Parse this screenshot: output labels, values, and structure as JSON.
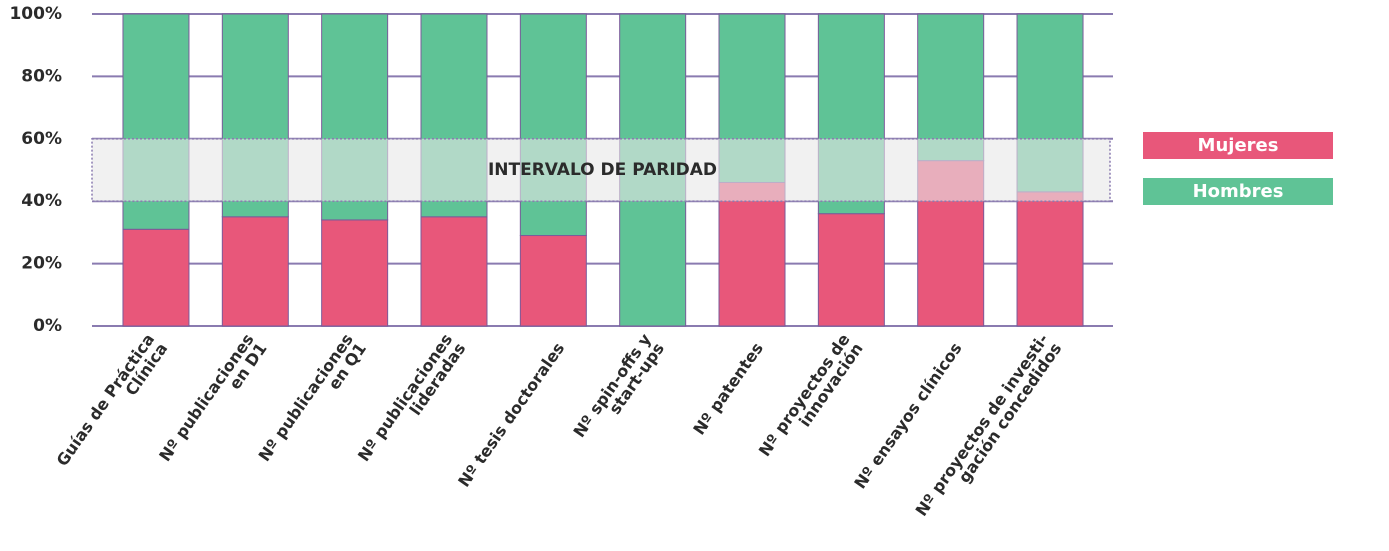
{
  "chart_data": {
    "type": "stacked_bar",
    "categories": [
      "Guías de Práctica\nClínica",
      "Nº publicaciones\nen D1",
      "Nº publicaciones\nen Q1",
      "Nº publicaciones\nlideradas",
      "Nº tesis doctorales",
      "Nº spin-offs y\nstart-ups",
      "Nº patentes",
      "Nº proyectos de\ninnovación",
      "Nº ensayos clínicos",
      "Nº proyectos de investi-\ngación concedidos"
    ],
    "series": [
      {
        "name": "Mujeres",
        "color": "#e8577a",
        "values": [
          31,
          35,
          34,
          35,
          29,
          0,
          46,
          36,
          53,
          43
        ]
      },
      {
        "name": "Hombres",
        "color": "#5fc396",
        "values": [
          69,
          65,
          66,
          65,
          71,
          100,
          54,
          64,
          47,
          57
        ]
      }
    ],
    "ylim": [
      0,
      100
    ],
    "yticks": [
      {
        "value": 0,
        "label": "0%"
      },
      {
        "value": 20,
        "label": "20%"
      },
      {
        "value": 40,
        "label": "40%"
      },
      {
        "value": 60,
        "label": "60%"
      },
      {
        "value": 80,
        "label": "80%"
      },
      {
        "value": 100,
        "label": "100%"
      }
    ],
    "grid": true,
    "band": {
      "range": [
        40,
        60
      ],
      "label": "INTERVALO DE PARIDAD"
    },
    "legend": "right"
  }
}
